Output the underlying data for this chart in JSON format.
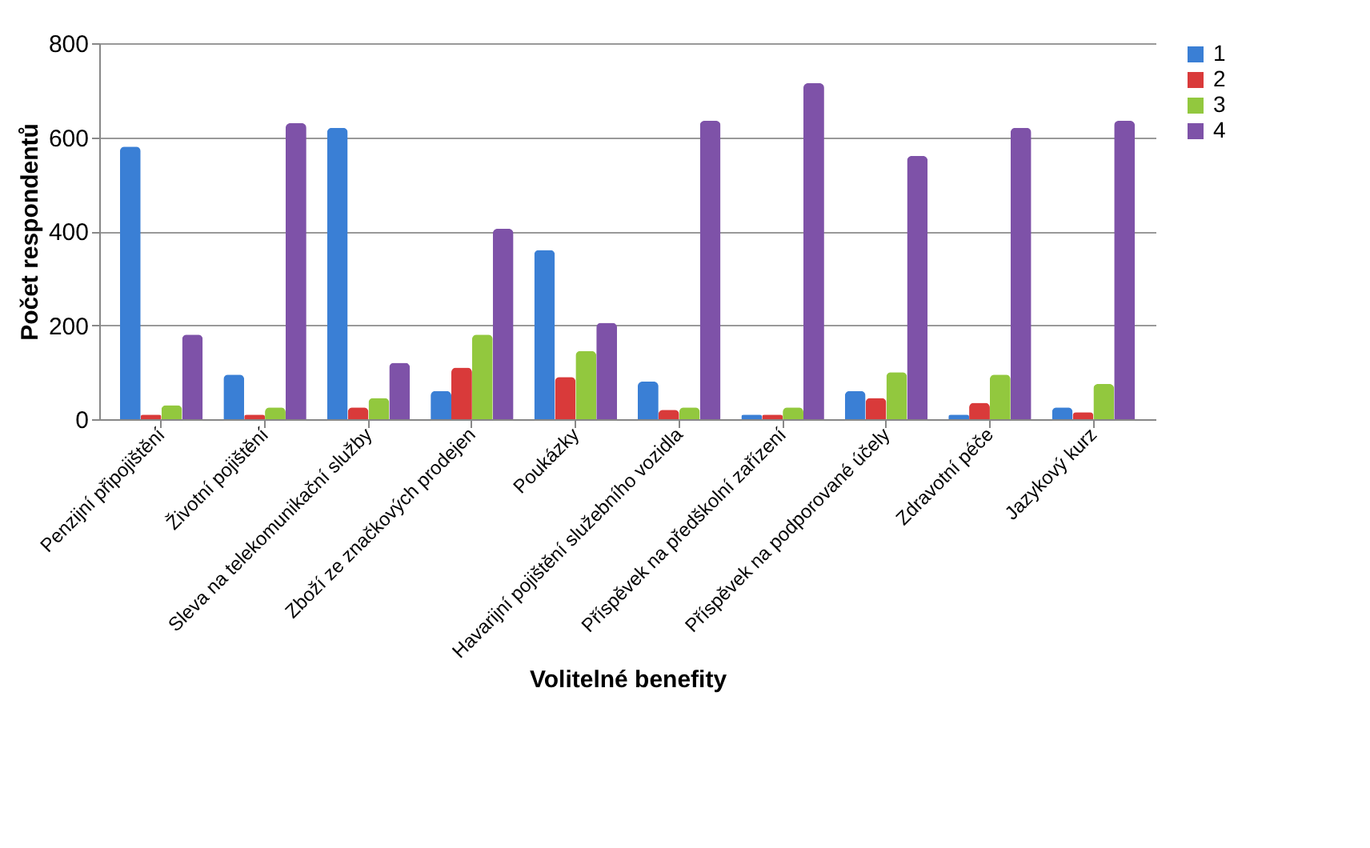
{
  "chart_data": {
    "type": "bar",
    "xlabel": "Volitelné benefity",
    "ylabel": "Počet respondentů",
    "categories": [
      "Penzijní připojištění",
      "Životní pojištění",
      "Sleva na telekomunikační služby",
      "Zboží ze značkových prodejen",
      "Poukázky",
      "Havarijní pojištění služebního vozidla",
      "Příspěvek na předškolní zařízení",
      "Příspěvek na podporované účely",
      "Zdravotní péče",
      "Jazykový kurz"
    ],
    "series": [
      {
        "name": "1",
        "color": "#3a7fd5",
        "values": [
          580,
          95,
          620,
          60,
          360,
          80,
          10,
          60,
          10,
          25
        ]
      },
      {
        "name": "2",
        "color": "#d93a3a",
        "values": [
          10,
          10,
          25,
          110,
          90,
          20,
          10,
          45,
          35,
          15
        ]
      },
      {
        "name": "3",
        "color": "#92c83e",
        "values": [
          30,
          25,
          45,
          180,
          145,
          25,
          25,
          100,
          95,
          75
        ]
      },
      {
        "name": "4",
        "color": "#7e52a8",
        "values": [
          180,
          630,
          120,
          405,
          205,
          635,
          715,
          560,
          620,
          635
        ]
      }
    ],
    "ylim": [
      0,
      800
    ],
    "yticks": [
      0,
      200,
      400,
      600,
      800
    ],
    "grid": "y",
    "legend": "right"
  }
}
